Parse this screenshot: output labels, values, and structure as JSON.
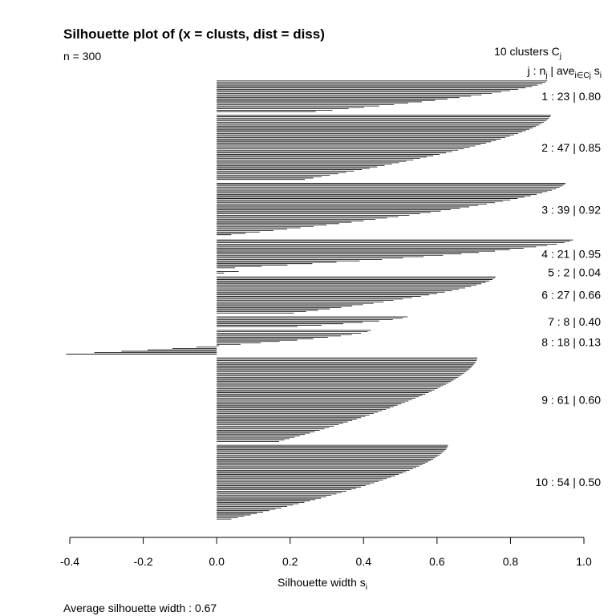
{
  "chart_data": {
    "type": "bar",
    "orientation": "horizontal",
    "title": "Silhouette plot of (x = clusts, dist = diss)",
    "subtitle": "n = 300",
    "header_line1": "10  clusters  C",
    "header_line1_sub": "j",
    "header_line2_parts": [
      "j :  n",
      "j",
      " | ave",
      "i∈Cj",
      "  s",
      "i"
    ],
    "xlabel": "Silhouette width s",
    "xlabel_sub": "i",
    "footer": "Average silhouette width :  0.67",
    "xlim": [
      -0.4,
      1.0
    ],
    "xticks": [
      -0.4,
      -0.2,
      0.0,
      0.2,
      0.4,
      0.6,
      0.8,
      1.0
    ],
    "xtick_labels": [
      "-0.4",
      "-0.2",
      "0.0",
      "0.2",
      "0.4",
      "0.6",
      "0.8",
      "1.0"
    ],
    "bar_color": "#000000",
    "clusters": [
      {
        "id": 1,
        "n": 23,
        "ave": 0.8,
        "label": "1 :   23  |  0.80",
        "first": 0.9,
        "last": 0.27
      },
      {
        "id": 2,
        "n": 47,
        "ave": 0.85,
        "label": "2 :   47  |  0.85",
        "first": 0.91,
        "last": 0.24
      },
      {
        "id": 3,
        "n": 39,
        "ave": 0.92,
        "label": "3 :   39  |  0.92",
        "first": 0.95,
        "last": 0.0
      },
      {
        "id": 4,
        "n": 21,
        "ave": 0.95,
        "label": "4 :   21  |  0.95",
        "first": 0.97,
        "last": 0.05
      },
      {
        "id": 5,
        "n": 2,
        "ave": 0.04,
        "label": "5 :   2  |  0.04",
        "first": 0.06,
        "last": 0.02
      },
      {
        "id": 6,
        "n": 27,
        "ave": 0.66,
        "label": "6 :   27  |  0.66",
        "first": 0.76,
        "last": 0.21
      },
      {
        "id": 7,
        "n": 8,
        "ave": 0.4,
        "label": "7 :   8  |  0.40",
        "first": 0.52,
        "last": 0.22
      },
      {
        "id": 8,
        "n": 18,
        "ave": 0.13,
        "label": "8 :   18  |  0.13",
        "first": 0.42,
        "last": -0.41
      },
      {
        "id": 9,
        "n": 61,
        "ave": 0.6,
        "label": "9 :   61  |  0.60",
        "first": 0.71,
        "last": 0.17
      },
      {
        "id": 10,
        "n": 54,
        "ave": 0.5,
        "label": "10 :   54  |  0.50",
        "first": 0.63,
        "last": 0.04
      }
    ]
  }
}
